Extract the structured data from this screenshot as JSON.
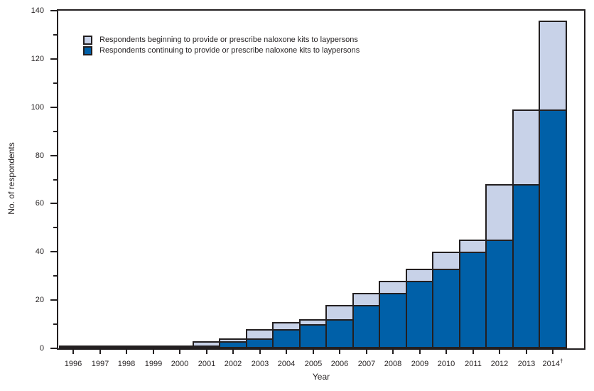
{
  "figure": {
    "background": "#ffffff",
    "text_color": "#231f20",
    "frame_color": "#231f20"
  },
  "chart_data": {
    "type": "bar",
    "stacked": true,
    "title": "",
    "xlabel": "Year",
    "ylabel": "No. of respondents",
    "ylim": [
      0,
      140
    ],
    "y_major_tick_step": 20,
    "y_minor_tick_step": 10,
    "y_major_tick_labels": [
      "0",
      "20",
      "40",
      "60",
      "80",
      "100",
      "120",
      "140"
    ],
    "grid": "off",
    "legend_position": "top-left-inside",
    "categories": [
      "1996",
      "1997",
      "1998",
      "1999",
      "2000",
      "2001",
      "2002",
      "2003",
      "2004",
      "2005",
      "2006",
      "2007",
      "2008",
      "2009",
      "2010",
      "2011",
      "2012",
      "2013",
      "2014"
    ],
    "last_category_suffix": "†",
    "series": [
      {
        "name": "Respondents beginning to provide or prescribe naloxone kits to laypersons",
        "role": "beginning",
        "stack_position": "top",
        "color": "#c8d2e8",
        "values": [
          1,
          0,
          0,
          0,
          0,
          2,
          1,
          4,
          3,
          2,
          6,
          5,
          5,
          5,
          7,
          5,
          23,
          31,
          37
        ]
      },
      {
        "name": "Respondents continuing to provide or prescribe naloxone kits to laypersons",
        "role": "continuing",
        "stack_position": "bottom",
        "color": "#0060a8",
        "values": [
          0,
          1,
          1,
          1,
          1,
          1,
          3,
          4,
          8,
          10,
          12,
          18,
          23,
          28,
          33,
          40,
          45,
          68,
          99
        ]
      }
    ],
    "totals": [
      1,
      1,
      1,
      1,
      1,
      3,
      4,
      8,
      11,
      12,
      18,
      23,
      28,
      33,
      40,
      45,
      68,
      99,
      136
    ],
    "bar_border_color": "#231f20"
  }
}
